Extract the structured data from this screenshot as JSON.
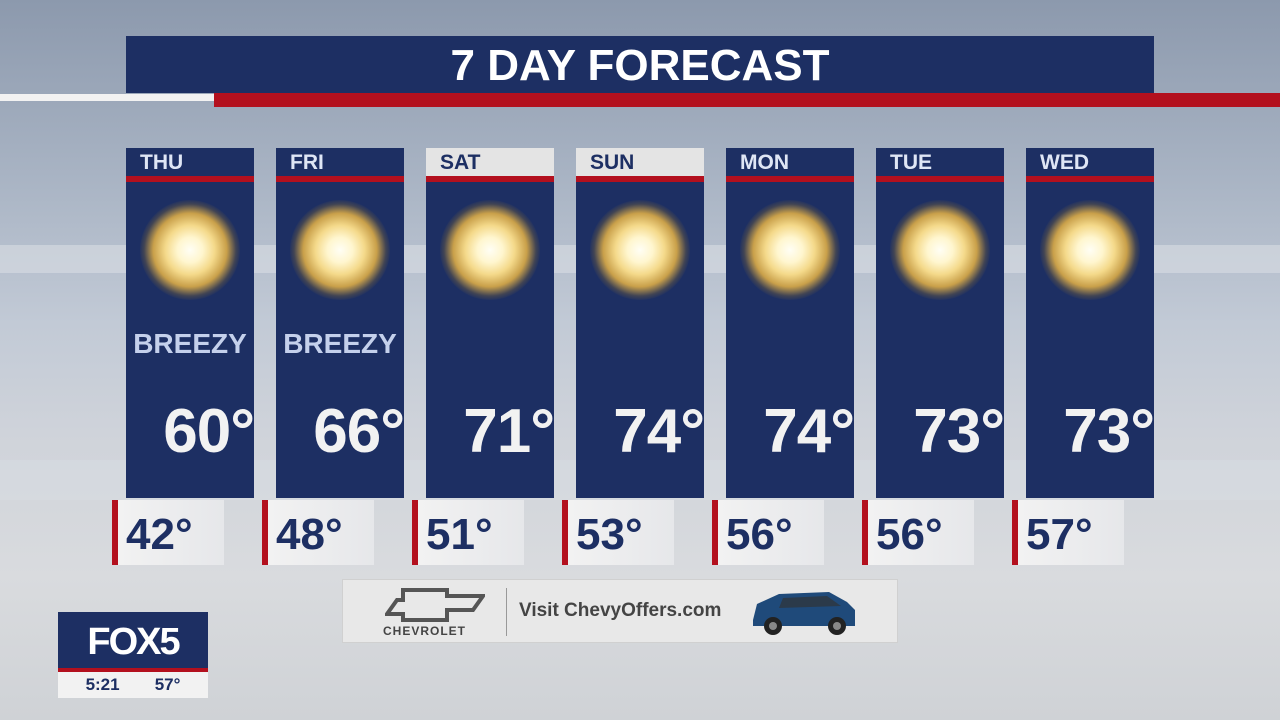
{
  "title": "7 DAY FORECAST",
  "colors": {
    "navy": "#1d2f63",
    "red": "#b3101e",
    "weekend_header": "#e4e4e4"
  },
  "days": [
    {
      "day": "THU",
      "icon": "sun-icon",
      "condition": "BREEZY",
      "high": "60°",
      "low": "42°",
      "weekend": false
    },
    {
      "day": "FRI",
      "icon": "sun-icon",
      "condition": "BREEZY",
      "high": "66°",
      "low": "48°",
      "weekend": false
    },
    {
      "day": "SAT",
      "icon": "sun-icon",
      "condition": "",
      "high": "71°",
      "low": "51°",
      "weekend": true
    },
    {
      "day": "SUN",
      "icon": "sun-icon",
      "condition": "",
      "high": "74°",
      "low": "53°",
      "weekend": true
    },
    {
      "day": "MON",
      "icon": "sun-icon",
      "condition": "",
      "high": "74°",
      "low": "56°",
      "weekend": false
    },
    {
      "day": "TUE",
      "icon": "sun-icon",
      "condition": "",
      "high": "73°",
      "low": "56°",
      "weekend": false
    },
    {
      "day": "WED",
      "icon": "sun-icon",
      "condition": "",
      "high": "73°",
      "low": "57°",
      "weekend": false
    }
  ],
  "ad": {
    "brand": "CHEVROLET",
    "text": "Visit ChevyOffers.com"
  },
  "station": {
    "logo": "FOX5",
    "time": "5:21",
    "temp": "57°"
  }
}
